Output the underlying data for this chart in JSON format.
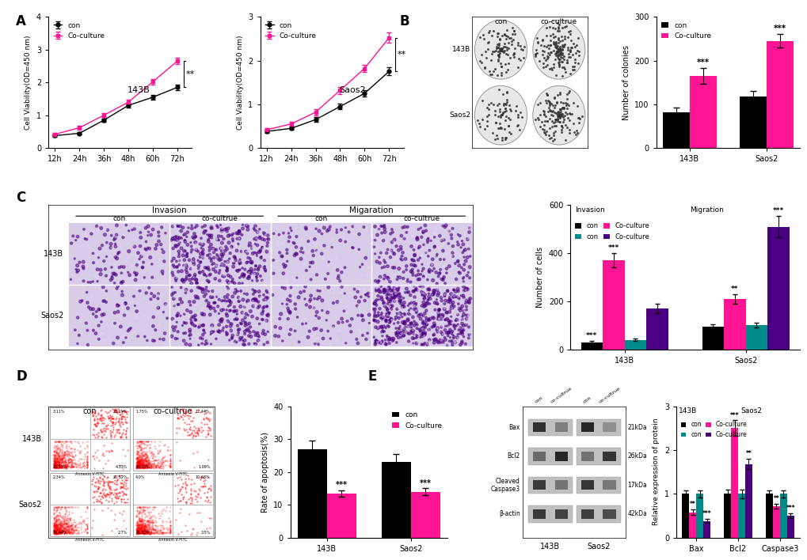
{
  "panel_A": {
    "x_ticks": [
      "12h",
      "24h",
      "36h",
      "48h",
      "60h",
      "72h"
    ],
    "con_143B": [
      0.38,
      0.45,
      0.85,
      1.3,
      1.55,
      1.85
    ],
    "coculture_143B": [
      0.42,
      0.62,
      1.0,
      1.4,
      2.02,
      2.65
    ],
    "con_err_143B": [
      0.03,
      0.04,
      0.05,
      0.06,
      0.07,
      0.08
    ],
    "coculture_err_143B": [
      0.04,
      0.05,
      0.06,
      0.07,
      0.08,
      0.1
    ],
    "con_saos2": [
      0.38,
      0.45,
      0.65,
      0.95,
      1.25,
      1.75
    ],
    "coculture_saos2": [
      0.42,
      0.55,
      0.82,
      1.32,
      1.82,
      2.52
    ],
    "con_err_saos2": [
      0.03,
      0.04,
      0.05,
      0.06,
      0.07,
      0.09
    ],
    "coculture_err_saos2": [
      0.04,
      0.05,
      0.07,
      0.08,
      0.09,
      0.12
    ],
    "ylabel": "Cell Viability(OD=450 nm)",
    "ylim_143B": [
      0,
      4
    ],
    "ylim_saos2": [
      0,
      3
    ],
    "yticks_143B": [
      0,
      1,
      2,
      3,
      4
    ],
    "yticks_saos2": [
      0,
      1,
      2,
      3
    ],
    "con_color": "#000000",
    "coculture_color": "#FF1493"
  },
  "panel_B": {
    "categories": [
      "143B",
      "Saos2"
    ],
    "con_values": [
      82,
      118
    ],
    "coculture_values": [
      165,
      245
    ],
    "con_err": [
      10,
      12
    ],
    "coculture_err": [
      18,
      15
    ],
    "ylabel": "Number of colonies",
    "ylim": [
      0,
      300
    ],
    "yticks": [
      0,
      100,
      200,
      300
    ],
    "con_color": "#000000",
    "coculture_color": "#FF1493",
    "sig_labels": [
      "***",
      "***"
    ]
  },
  "panel_C": {
    "legend_colors": [
      "#000000",
      "#FF1493",
      "#008B8B",
      "#4B0082"
    ],
    "values_143B": [
      30,
      370,
      40,
      170
    ],
    "values_saos2": [
      95,
      210,
      100,
      510
    ],
    "err_143B": [
      5,
      30,
      5,
      20
    ],
    "err_saos2": [
      8,
      20,
      10,
      45
    ],
    "ylabel": "Number of cells",
    "ylim": [
      0,
      600
    ],
    "yticks": [
      0,
      200,
      400,
      600
    ],
    "sig_143B": [
      "***",
      "***",
      "",
      ""
    ],
    "sig_saos2": [
      "",
      "**",
      "",
      "***"
    ]
  },
  "panel_D": {
    "groups": [
      "143B",
      "Saos2"
    ],
    "con_values": [
      27,
      23
    ],
    "coculture_values": [
      13.5,
      14
    ],
    "con_err": [
      2.5,
      2.5
    ],
    "coculture_err": [
      1.0,
      1.0
    ],
    "ylabel": "Rate of apoptosis(%)",
    "ylim": [
      0,
      40
    ],
    "yticks": [
      0,
      10,
      20,
      30,
      40
    ],
    "con_color": "#000000",
    "coculture_color": "#FF1493",
    "sig_labels": [
      "***",
      "***"
    ]
  },
  "panel_E_bar": {
    "proteins": [
      "Bax",
      "Bcl2",
      "Caspase3"
    ],
    "colors": [
      "#000000",
      "#FF1493",
      "#008B8B",
      "#4B0082"
    ],
    "values": {
      "Bax": [
        1.0,
        0.58,
        1.0,
        0.38
      ],
      "Bcl2": [
        1.0,
        2.5,
        1.0,
        1.68
      ],
      "Caspase3": [
        1.0,
        0.72,
        1.0,
        0.5
      ]
    },
    "errors": {
      "Bax": [
        0.08,
        0.06,
        0.08,
        0.05
      ],
      "Bcl2": [
        0.1,
        0.18,
        0.1,
        0.12
      ],
      "Caspase3": [
        0.08,
        0.06,
        0.08,
        0.06
      ]
    },
    "ylabel": "Relative expression of protein",
    "ylim": [
      0,
      3
    ],
    "yticks": [
      0,
      1,
      2,
      3
    ],
    "sig_labels": {
      "Bax": [
        "",
        "**",
        "",
        "***"
      ],
      "Bcl2": [
        "",
        "***",
        "",
        "**"
      ],
      "Caspase3": [
        "",
        "**",
        "",
        "***"
      ]
    }
  }
}
